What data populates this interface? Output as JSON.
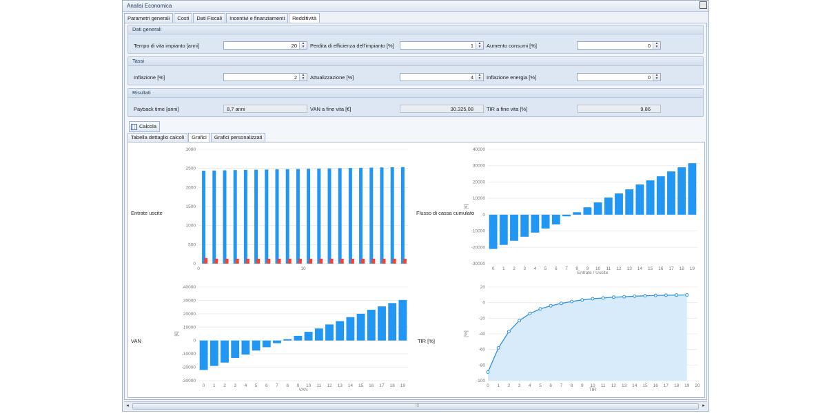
{
  "window": {
    "title": "Analisi Economica"
  },
  "tabs": [
    "Parametri generali",
    "Costi",
    "Dati Fiscali",
    "Incentivi e finanziamenti",
    "Redditività"
  ],
  "groups": {
    "dati_generali": {
      "title": "Dati generali",
      "vita_label": "Tempo di vita impianto [anni]",
      "vita_value": "20",
      "perdita_label": "Perdita di efficienza dell'impianto [%]",
      "perdita_value": "1",
      "aumento_label": "Aumento consumi [%]",
      "aumento_value": "0"
    },
    "tassi": {
      "title": "Tassi",
      "inflazione_label": "Inflazione [%]",
      "inflazione_value": "2",
      "attualizzazione_label": "Attualizzazione [%]",
      "attualizzazione_value": "4",
      "infl_energia_label": "Inflazione energia [%]",
      "infl_energia_value": "0"
    },
    "risultati": {
      "title": "Risultati",
      "payback_label": "Payback time [anni]",
      "payback_value": "8,7 anni",
      "van_label": "VAN a fine vita [€]",
      "van_value": "30.325,08",
      "tir_label": "TIR a fine vita [%]",
      "tir_value": "9,86"
    }
  },
  "calcola_label": "Calcola",
  "subtabs": [
    "Tabella dettaglio calcoli",
    "Grafici",
    "Grafici personalizzati"
  ],
  "colors": {
    "bar": "#2196f3",
    "red": "#f44336",
    "line": "#2d8fe0",
    "area": "#d7ebfb"
  },
  "chart_data": [
    {
      "type": "bar",
      "title": "Entrate uscite",
      "x": [
        0,
        1,
        2,
        3,
        4,
        5,
        6,
        7,
        8,
        9,
        10,
        11,
        12,
        13,
        14,
        15,
        16,
        17,
        18,
        19
      ],
      "x_ticks": [
        "0",
        "10"
      ],
      "ylim": [
        0,
        3000
      ],
      "y_ticks": [
        "0",
        "500",
        "1000",
        "1500",
        "2000",
        "2500",
        "3000"
      ],
      "series": [
        {
          "values": [
            2440,
            2445,
            2450,
            2455,
            2460,
            2465,
            2470,
            2475,
            2480,
            2485,
            2490,
            2495,
            2500,
            2505,
            2510,
            2515,
            2520,
            2525,
            2530,
            2535
          ]
        },
        {
          "values": [
            150,
            130,
            130,
            130,
            130,
            130,
            130,
            130,
            130,
            130,
            130,
            130,
            130,
            130,
            130,
            130,
            130,
            130,
            130,
            130
          ]
        }
      ]
    },
    {
      "type": "bar",
      "title": "Flusso di cassa cumulato",
      "xlabel": "Entrate / Uscite",
      "ylabel": "[€]",
      "x": [
        0,
        1,
        2,
        3,
        4,
        5,
        6,
        7,
        8,
        9,
        10,
        11,
        12,
        13,
        14,
        15,
        16,
        17,
        18,
        19
      ],
      "ylim": [
        -30000,
        40000
      ],
      "y_ticks": [
        "40000",
        "30000",
        "20000",
        "10000",
        "0",
        "-10000",
        "-20000",
        "-30000"
      ],
      "values": [
        -21000,
        -18500,
        -16000,
        -13500,
        -11000,
        -8500,
        -6000,
        -1000,
        1500,
        4500,
        7500,
        10500,
        13000,
        15500,
        18500,
        21000,
        23500,
        26500,
        29000,
        31500
      ]
    },
    {
      "type": "bar",
      "title": "VAN",
      "xlabel": "VAN",
      "ylabel": "[€]",
      "x": [
        0,
        1,
        2,
        3,
        4,
        5,
        6,
        7,
        8,
        9,
        10,
        11,
        12,
        13,
        14,
        15,
        16,
        17,
        18,
        19
      ],
      "ylim": [
        -30000,
        40000
      ],
      "y_ticks": [
        "40000",
        "30000",
        "20000",
        "10000",
        "0",
        "-10000",
        "-20000",
        "-30000"
      ],
      "values": [
        -22000,
        -19000,
        -16500,
        -13000,
        -10500,
        -7500,
        -5000,
        -2000,
        1000,
        3500,
        6500,
        9000,
        12000,
        14500,
        17500,
        20000,
        23000,
        25500,
        28000,
        30300
      ]
    },
    {
      "type": "area",
      "title": "TIR [%]",
      "xlabel": "TIR",
      "ylabel": "[%]",
      "x": [
        0,
        1,
        2,
        3,
        4,
        5,
        6,
        7,
        8,
        9,
        10,
        11,
        12,
        13,
        14,
        15,
        16,
        17,
        18,
        19
      ],
      "x_ticks": [
        "0",
        "1",
        "2",
        "3",
        "4",
        "5",
        "6",
        "7",
        "8",
        "9",
        "10",
        "11",
        "12",
        "13",
        "14",
        "15",
        "16",
        "17",
        "18",
        "19",
        "20"
      ],
      "ylim": [
        -100,
        20
      ],
      "y_ticks": [
        "20",
        "0",
        "-20",
        "-40",
        "-60",
        "-80",
        "-100"
      ],
      "values": [
        -89,
        -58,
        -37,
        -23,
        -14,
        -8,
        -4,
        -1,
        1.5,
        3.5,
        5,
        6,
        7,
        7.5,
        8.2,
        8.8,
        9.2,
        9.5,
        9.7,
        9.86
      ]
    }
  ]
}
